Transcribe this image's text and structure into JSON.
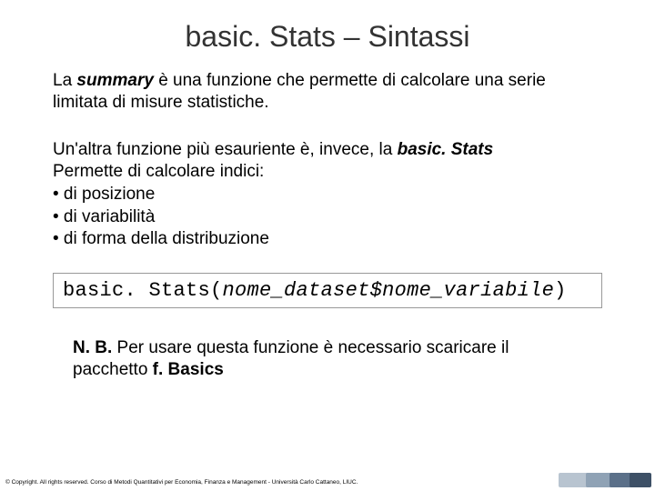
{
  "title": "basic. Stats – Sintassi",
  "para1": {
    "pre": "La ",
    "summary": "summary",
    "post": " è una funzione che permette di calcolare una serie limitata di misure statistiche."
  },
  "para2": {
    "line1_pre": "Un'altra funzione più esauriente è, invece, la ",
    "line1_term": "basic. Stats",
    "line2": "Permette di calcolare indici:",
    "b1": "• di posizione",
    "b2": "• di variabilità",
    "b3": "• di forma della distribuzione"
  },
  "code": {
    "fn_a": "basic. ",
    "fn_b": "Stats",
    "open": "(",
    "arg": "nome_dataset$nome_variabile",
    "close": ")"
  },
  "note": {
    "nb": "N. B.",
    "text": " Per usare questa funzione è necessario scaricare il pacchetto ",
    "pkg": "f. Basics"
  },
  "footer": "© Copyright. All rights reserved. Corso di Metodi Quantitativi per Economia, Finanza e Management - Università Carlo Cattaneo, LIUC.",
  "decor": {
    "colors": [
      "#b8c4d0",
      "#8fa2b5",
      "#5b7089",
      "#3d5066"
    ],
    "widths": [
      34,
      30,
      26,
      24
    ]
  }
}
